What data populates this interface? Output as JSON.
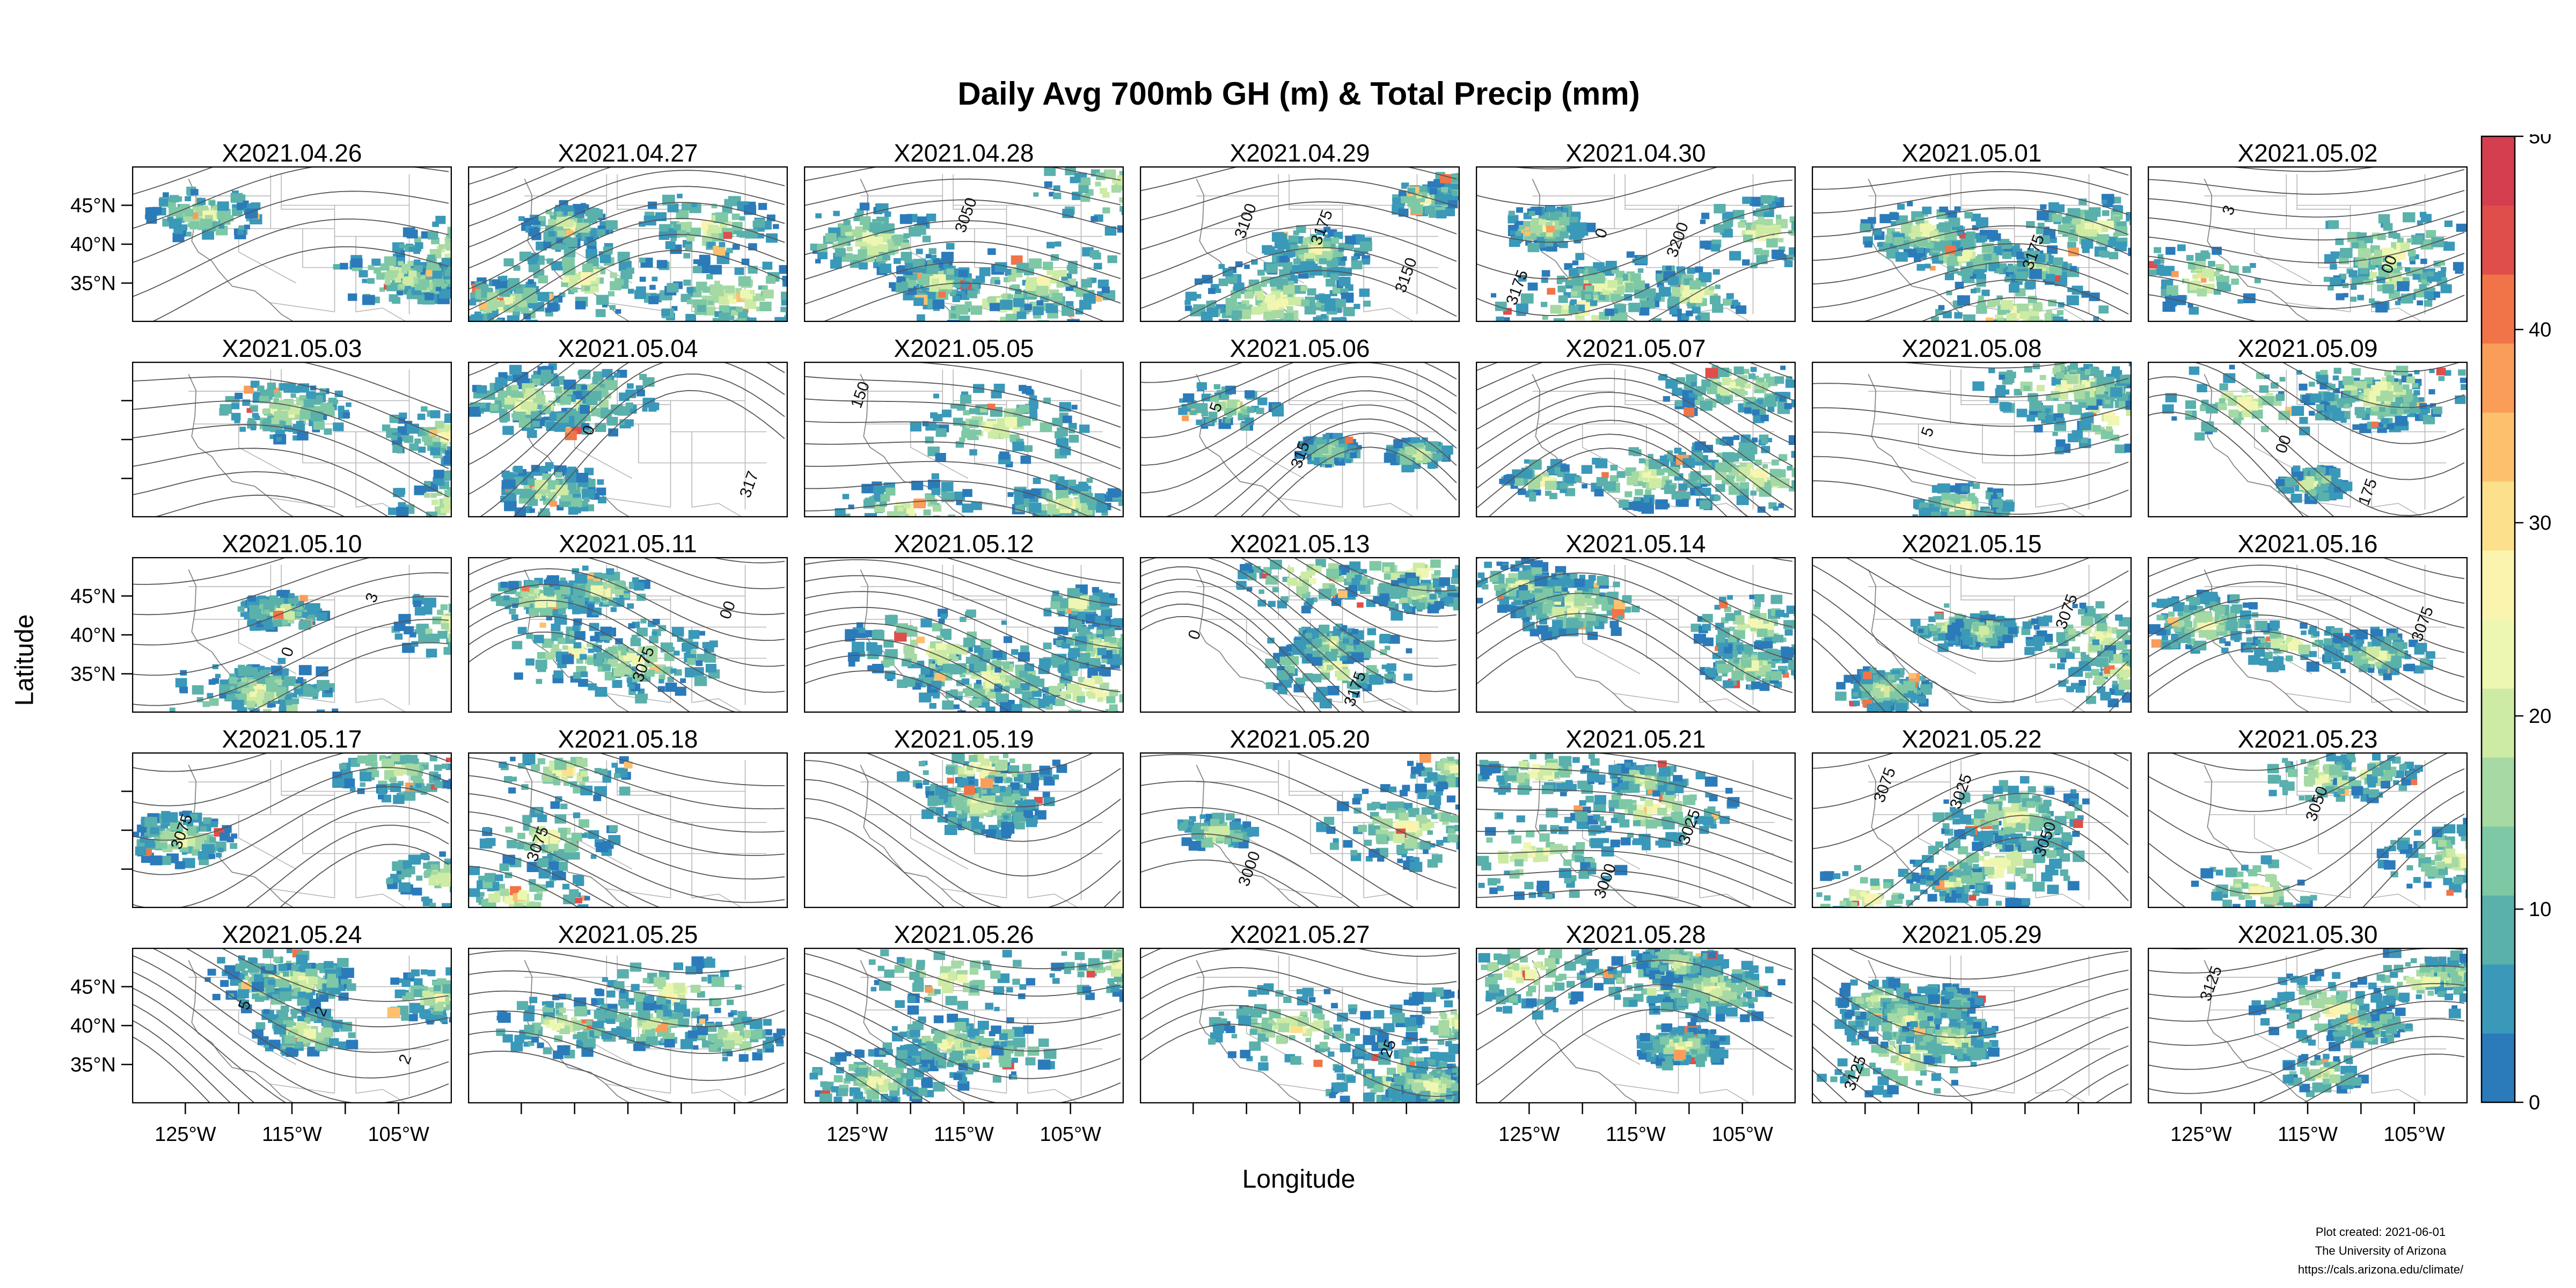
{
  "title": "Daily Avg 700mb GH (m) & Total Precip (mm)",
  "ylabel": "Latitude",
  "xlabel": "Longitude",
  "credits": {
    "created": "Plot created: 2021-06-01",
    "org": "The University of Arizona",
    "url": "https://cals.arizona.edu/climate/"
  },
  "colors": {
    "scale": [
      "#2b7bba",
      "#3a98b9",
      "#5ab0ab",
      "#7ec8a5",
      "#a6d9a4",
      "#cdeba4",
      "#eef7b1",
      "#fbf4ae",
      "#fde08b",
      "#fdc16e",
      "#f99d59",
      "#f07448",
      "#df4e4a",
      "#d53e4f"
    ],
    "contour": "#555555",
    "border": "#b8b8b8",
    "coast": "#888888"
  },
  "chart_data": {
    "type": "heatmap",
    "title": "Daily Avg 700mb GH (m) & Total Precip (mm)",
    "xlabel": "Longitude",
    "ylabel": "Latitude",
    "layout": {
      "rows": 5,
      "cols": 7
    },
    "x_ticks": [
      "125°W",
      "115°W",
      "105°W"
    ],
    "x_tick_values": [
      -125,
      -115,
      -105
    ],
    "y_ticks": [
      "45°N",
      "40°N",
      "35°N"
    ],
    "y_tick_values": [
      45,
      40,
      35
    ],
    "xlim": [
      -130,
      -100
    ],
    "ylim": [
      30,
      50
    ],
    "x_axis_cols_bottom": [
      0,
      2,
      4,
      6
    ],
    "y_axis_rows_left": [
      0,
      2,
      4
    ],
    "colorbar": {
      "range": [
        0,
        50
      ],
      "ticks": [
        0,
        10,
        20,
        30,
        40,
        50
      ],
      "tick_labels": [
        "0",
        "10",
        "20",
        "30",
        "40",
        "50"
      ]
    },
    "panels": [
      {
        "label": "X2021.04.26",
        "contour_labels": []
      },
      {
        "label": "X2021.04.27",
        "contour_labels": []
      },
      {
        "label": "X2021.04.28",
        "contour_labels": [
          "3050"
        ]
      },
      {
        "label": "X2021.04.29",
        "contour_labels": [
          "3175",
          "3150",
          "3100"
        ]
      },
      {
        "label": "X2021.04.30",
        "contour_labels": [
          "3200",
          "3175",
          "0"
        ]
      },
      {
        "label": "X2021.05.01",
        "contour_labels": [
          "3175"
        ]
      },
      {
        "label": "X2021.05.02",
        "contour_labels": [
          "00",
          "3"
        ]
      },
      {
        "label": "X2021.05.03",
        "contour_labels": []
      },
      {
        "label": "X2021.05.04",
        "contour_labels": [
          "317",
          "0"
        ]
      },
      {
        "label": "X2021.05.05",
        "contour_labels": [
          "150"
        ]
      },
      {
        "label": "X2021.05.06",
        "contour_labels": [
          "5",
          "315"
        ]
      },
      {
        "label": "X2021.05.07",
        "contour_labels": []
      },
      {
        "label": "X2021.05.08",
        "contour_labels": [
          "5"
        ]
      },
      {
        "label": "X2021.05.09",
        "contour_labels": [
          "00",
          "175"
        ]
      },
      {
        "label": "X2021.05.10",
        "contour_labels": [
          "0",
          "3"
        ]
      },
      {
        "label": "X2021.05.11",
        "contour_labels": [
          "3075",
          "00"
        ]
      },
      {
        "label": "X2021.05.12",
        "contour_labels": []
      },
      {
        "label": "X2021.05.13",
        "contour_labels": [
          "3175",
          "0"
        ]
      },
      {
        "label": "X2021.05.14",
        "contour_labels": []
      },
      {
        "label": "X2021.05.15",
        "contour_labels": [
          "3075"
        ]
      },
      {
        "label": "X2021.05.16",
        "contour_labels": [
          "3075"
        ]
      },
      {
        "label": "X2021.05.17",
        "contour_labels": [
          "3075"
        ]
      },
      {
        "label": "X2021.05.18",
        "contour_labels": [
          "3075"
        ]
      },
      {
        "label": "X2021.05.19",
        "contour_labels": []
      },
      {
        "label": "X2021.05.20",
        "contour_labels": [
          "3000"
        ]
      },
      {
        "label": "X2021.05.21",
        "contour_labels": [
          "3000",
          "3025"
        ]
      },
      {
        "label": "X2021.05.22",
        "contour_labels": [
          "3025",
          "3050",
          "3075"
        ]
      },
      {
        "label": "X2021.05.23",
        "contour_labels": [
          "3050"
        ]
      },
      {
        "label": "X2021.05.24",
        "contour_labels": [
          "2",
          "2",
          "5"
        ]
      },
      {
        "label": "X2021.05.25",
        "contour_labels": []
      },
      {
        "label": "X2021.05.26",
        "contour_labels": []
      },
      {
        "label": "X2021.05.27",
        "contour_labels": [
          "25"
        ]
      },
      {
        "label": "X2021.05.28",
        "contour_labels": []
      },
      {
        "label": "X2021.05.29",
        "contour_labels": [
          "3125"
        ]
      },
      {
        "label": "X2021.05.30",
        "contour_labels": [
          "3125"
        ]
      }
    ]
  }
}
